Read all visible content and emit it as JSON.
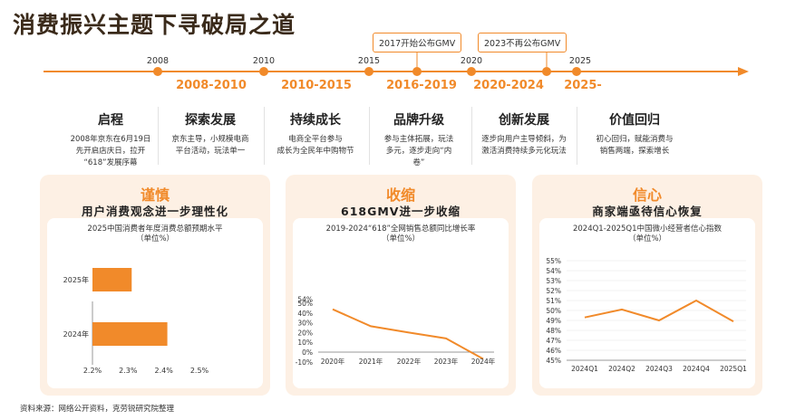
{
  "title": "消费振兴主题下寻破局之道",
  "timeline": {
    "years": [
      "2008",
      "2010",
      "2015",
      "2020",
      "2025"
    ],
    "events": [
      "2017开始公布GMV",
      "2023不再公布GMV"
    ],
    "eras": [
      "2008-2010",
      "2010-2015",
      "2016-2019",
      "2020-2024",
      "2025-"
    ],
    "phases": [
      {
        "title": "启程",
        "desc": [
          "2008年京东在6月19日",
          "先开启店庆日，拉开",
          "“618”发展序幕"
        ]
      },
      {
        "title": "探索发展",
        "desc": [
          "京东主导，小规模电商",
          "平台活动，玩法单一"
        ]
      },
      {
        "title": "持续成长",
        "desc": [
          "电商全平台参与",
          "成长为全民年中购物节"
        ]
      },
      {
        "title": "品牌升级",
        "desc": [
          "参与主体拓展，玩法",
          "多元，逐步走向“内",
          "卷”"
        ]
      },
      {
        "title": "创新发展",
        "desc": [
          "逐步向用户主导倾斜，为",
          "激活消费持续多元化玩法"
        ]
      },
      {
        "title": "价值回归",
        "desc": [
          "初心回归，赋能消费与",
          "销售两端，探索增长"
        ]
      }
    ]
  },
  "panels": [
    {
      "title": "谨慎",
      "subtitle": "用户消费观念进一步理性化",
      "chart_title": "2025中国消费者年度消费总额预期水平",
      "chart_unit": "（单位%）"
    },
    {
      "title": "收缩",
      "subtitle": "618GMV进一步收缩",
      "chart_title": "2019-2024“618”全网销售总额同比增长率",
      "chart_unit": "（单位%）"
    },
    {
      "title": "信心",
      "subtitle": "商家端亟待信心恢复",
      "chart_title": "2024Q1-2025Q1中国微小经营者信心指数",
      "chart_unit": "（单位%）"
    }
  ],
  "source": "资料来源：网络公开资料，克劳锐研究院整理",
  "colors": {
    "accent": "#f18a2a",
    "panel_bg": "#fdf0e4",
    "title": "#3a2a1a"
  },
  "chart_data": [
    {
      "type": "bar",
      "orientation": "horizontal",
      "categories": [
        "2025年",
        "2024年"
      ],
      "values": [
        2.31,
        2.41
      ],
      "xlim": [
        2.2,
        2.5
      ],
      "xticks": [
        "2.2%",
        "2.3%",
        "2.4%",
        "2.5%"
      ],
      "title": "2025中国消费者年度消费总额预期水平",
      "unit": "（单位%）"
    },
    {
      "type": "line",
      "x": [
        "2020年",
        "2021年",
        "2022年",
        "2023年",
        "2024年"
      ],
      "values": [
        43.8,
        26.5,
        20.0,
        14.0,
        -7.0
      ],
      "ylim": [
        -10,
        54
      ],
      "yticks": [
        "54%",
        "50%",
        "40%",
        "30%",
        "20%",
        "10%",
        "0%",
        "-10%"
      ],
      "title": "2019-2024“618”全网销售总额同比增长率",
      "unit": "（单位%）"
    },
    {
      "type": "line",
      "x": [
        "2024Q1",
        "2024Q2",
        "2024Q3",
        "2024Q4",
        "2025Q1"
      ],
      "values": [
        49.3,
        50.1,
        49.0,
        51.0,
        48.9
      ],
      "ylim": [
        45,
        55
      ],
      "yticks": [
        "55%",
        "54%",
        "53%",
        "52%",
        "51%",
        "50%",
        "49%",
        "48%",
        "47%",
        "46%",
        "45%"
      ],
      "title": "2024Q1-2025Q1中国微小经营者信心指数",
      "unit": "（单位%）"
    }
  ]
}
